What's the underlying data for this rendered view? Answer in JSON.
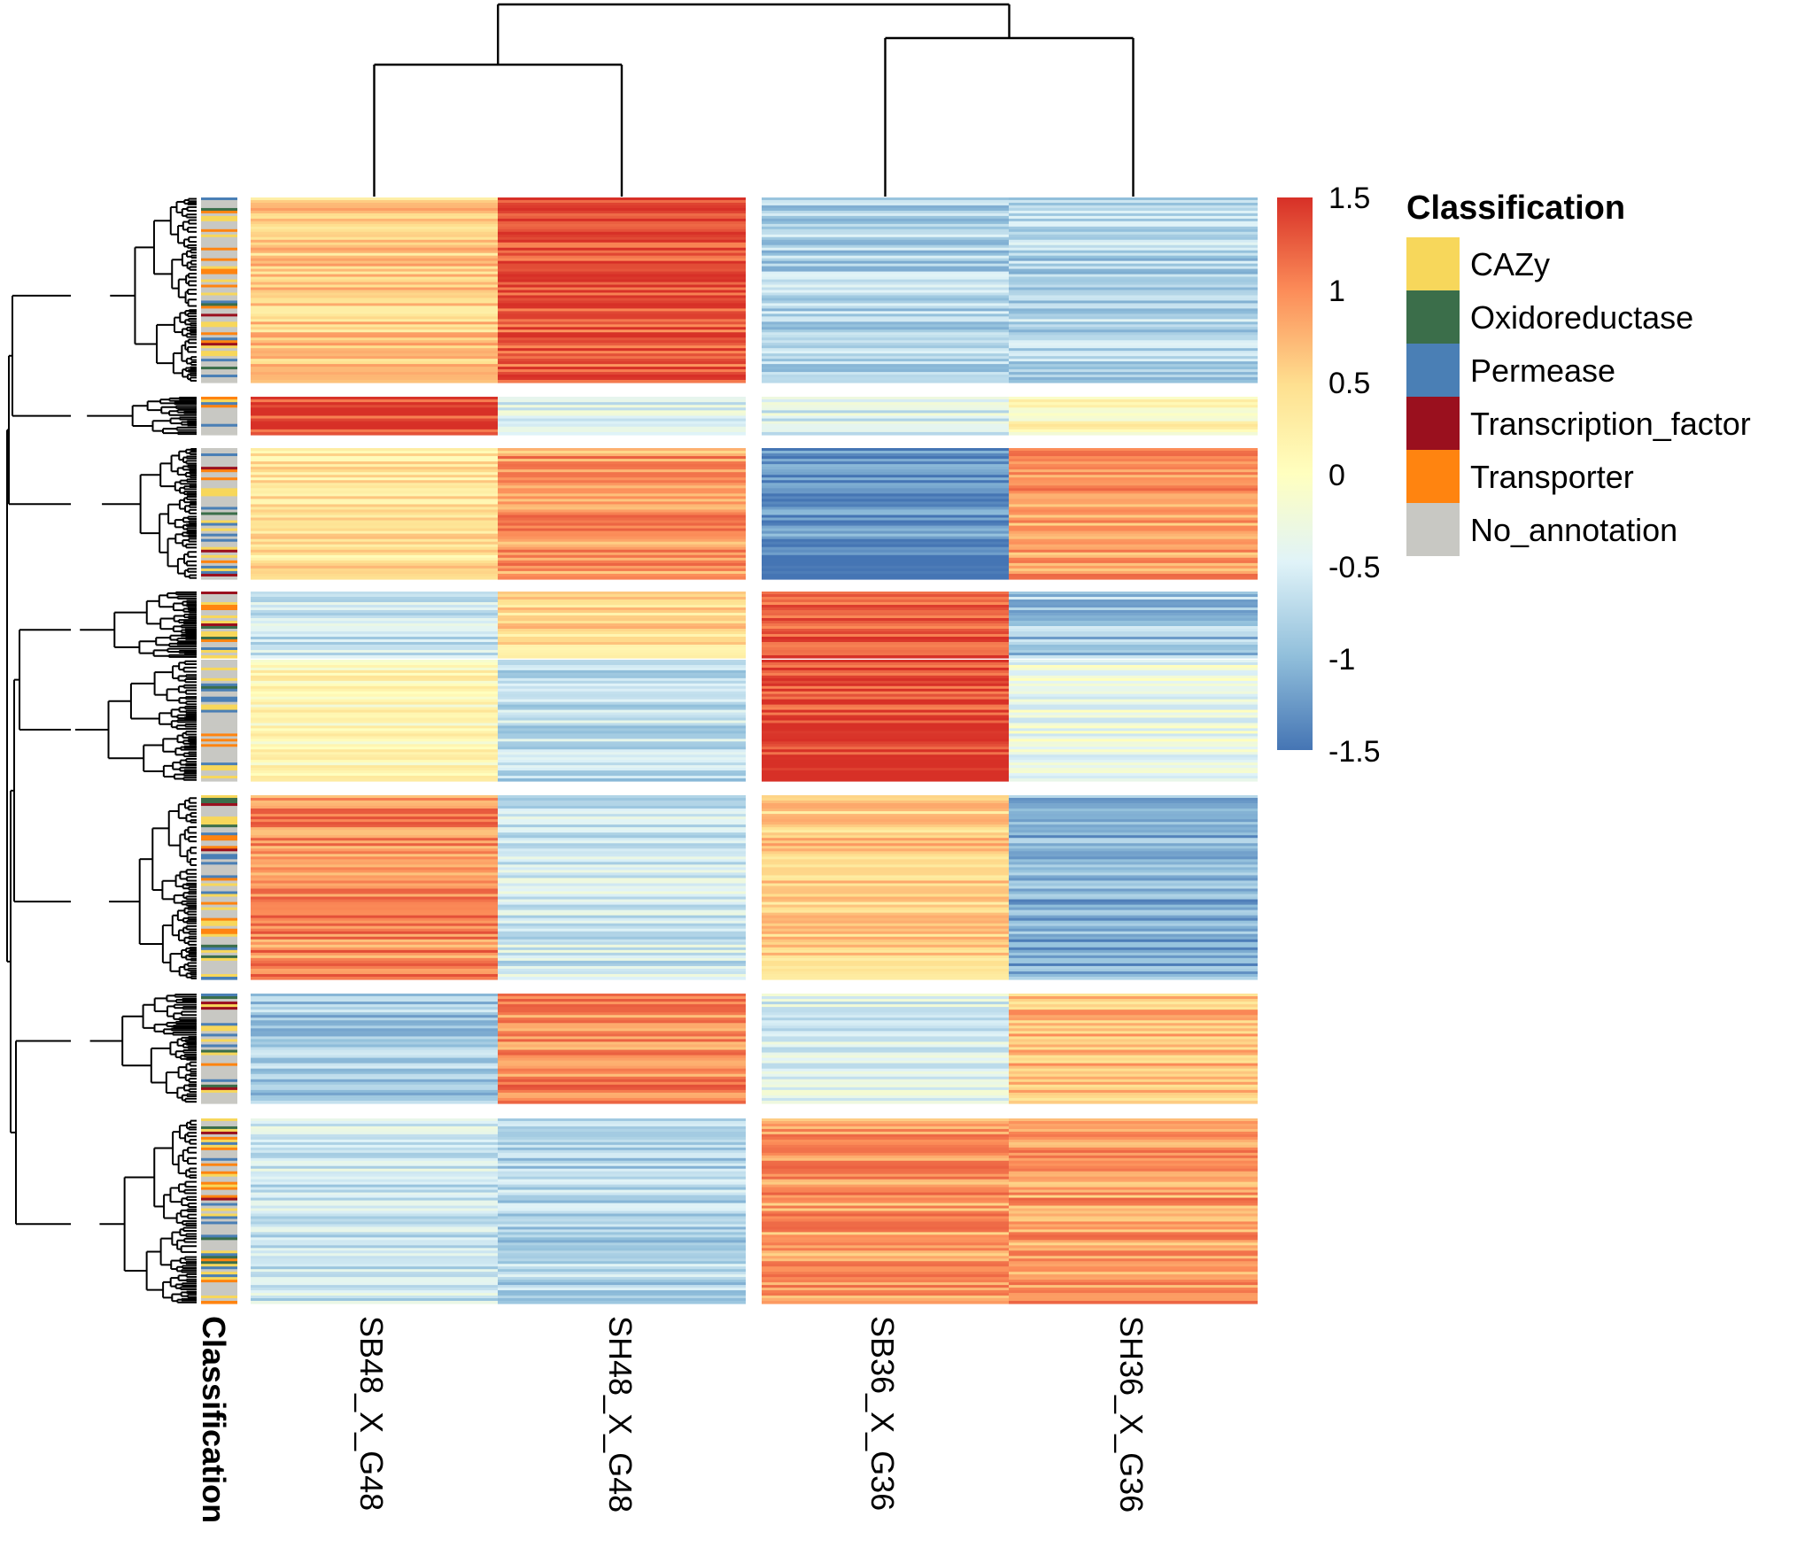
{
  "chart_data": {
    "type": "heatmap",
    "title": "",
    "columns": [
      "SB48_X_G48",
      "SH48_X_G48",
      "SB36_X_G36",
      "SH36_X_G36"
    ],
    "annotation_column_label": "Classification",
    "row_clusters": [
      {
        "cluster": 1,
        "values": [
          0.6,
          1.3,
          -0.8,
          -0.8
        ]
      },
      {
        "cluster": 2,
        "values": [
          1.4,
          -0.5,
          -0.5,
          0.1
        ]
      },
      {
        "cluster": 3,
        "values": [
          0.4,
          0.9,
          -1.3,
          0.9
        ]
      },
      {
        "cluster": 4,
        "values": [
          -0.6,
          0.5,
          1.2,
          -0.9
        ]
      },
      {
        "cluster": 5,
        "values": [
          0.1,
          -0.7,
          1.4,
          -0.3
        ]
      },
      {
        "cluster": 6,
        "values": [
          1.0,
          -0.6,
          0.6,
          -1.1
        ]
      },
      {
        "cluster": 7,
        "values": [
          -0.9,
          1.0,
          -0.5,
          0.7
        ]
      },
      {
        "cluster": 8,
        "values": [
          -0.6,
          -0.8,
          0.9,
          0.9
        ]
      }
    ],
    "color_scale": {
      "min": -1.5,
      "max": 1.5,
      "ticks": [
        "1.5",
        "1",
        "0.5",
        "0",
        "-0.5",
        "-1",
        "-1.5"
      ],
      "low_color": "#4575b4",
      "mid_color": "#ffffbf",
      "high_color": "#d73027"
    },
    "legend": {
      "title": "Classification",
      "entries": [
        {
          "label": "CAZy",
          "color": "#f7d75b"
        },
        {
          "label": "Oxidoreductase",
          "color": "#3b6e4a"
        },
        {
          "label": "Permease",
          "color": "#4a7fb5"
        },
        {
          "label": "Transcription_factor",
          "color": "#9a101e"
        },
        {
          "label": "Transporter",
          "color": "#ff8410"
        },
        {
          "label": "No_annotation",
          "color": "#c8c8c3"
        }
      ]
    }
  }
}
